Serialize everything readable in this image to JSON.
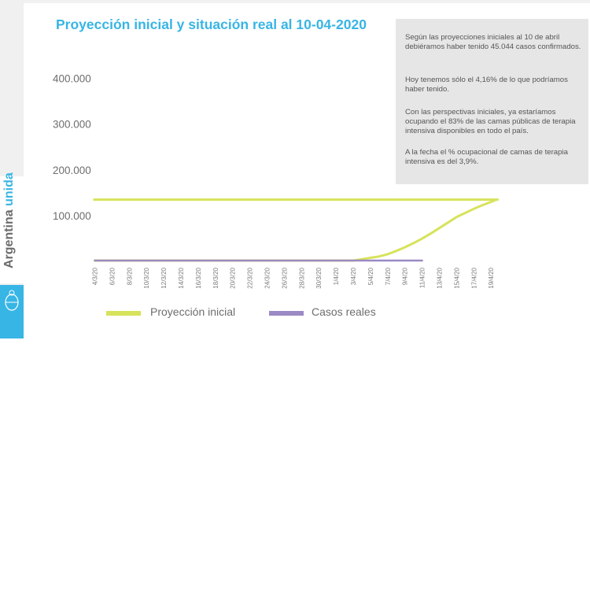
{
  "sidebar": {
    "brand_prefix": "Argentina ",
    "brand_accent": "unida",
    "crest_line1": "Argentina",
    "crest_line2": "Presidencia"
  },
  "header": {
    "title": "Proyección inicial y situación real al 10-04-2020"
  },
  "notes": [
    "Según las proyecciones iniciales al 10 de abril debiéramos haber tenido 45.044 casos confirmados.",
    "Hoy tenemos sólo el 4,16% de lo que podríamos haber tenido.",
    "Con las perspectivas iniciales, ya estaríamos ocupando el 83% de las camas públicas de terapia intensiva disponibles en todo el país.",
    "A la fecha el % ocupacional de camas de terapia intensiva es del 3,9%."
  ],
  "colors": {
    "title": "#37b5e5",
    "projection": "#d7e35a",
    "real": "#9b8ac4",
    "note_bg": "#e6e6e6"
  },
  "chart_data": {
    "type": "line",
    "title": "Proyección inicial y situación real al 10-04-2020",
    "xlabel": "",
    "ylabel": "",
    "ylim": [
      0,
      400000
    ],
    "yticks": [
      100000,
      200000,
      300000,
      400000
    ],
    "ytick_labels": [
      "100.000",
      "200.000",
      "300.000",
      "400.000"
    ],
    "categories": [
      "4/3/20",
      "6/3/20",
      "8/3/20",
      "10/3/20",
      "12/3/20",
      "14/3/20",
      "16/3/20",
      "18/3/20",
      "20/3/20",
      "22/3/20",
      "24/3/20",
      "26/3/20",
      "28/3/20",
      "30/3/20",
      "1/4/20",
      "3/4/20",
      "5/4/20",
      "7/4/20",
      "9/4/20",
      "11/4/20",
      "13/4/20",
      "15/4/20",
      "17/4/20",
      "19/4/20"
    ],
    "series": [
      {
        "name": "Proyección inicial",
        "color": "#d7e35a",
        "points": [
          [
            0,
            2000
          ],
          [
            14,
            2000
          ],
          [
            15,
            2000
          ],
          [
            15.5,
            5000
          ],
          [
            16,
            8000
          ],
          [
            16.5,
            11000
          ],
          [
            17,
            16000
          ],
          [
            17.5,
            23000
          ],
          [
            18,
            31000
          ],
          [
            18.5,
            40000
          ],
          [
            19,
            50000
          ],
          [
            19.5,
            61000
          ],
          [
            20,
            73000
          ],
          [
            20.5,
            85000
          ],
          [
            21,
            97000
          ],
          [
            21.5,
            106000
          ],
          [
            22,
            115000
          ],
          [
            22.5,
            123000
          ],
          [
            23,
            130000
          ],
          [
            23.3,
            135000
          ]
        ]
      },
      {
        "name": "Casos reales",
        "color": "#9b8ac4",
        "points": [
          [
            0,
            2000
          ],
          [
            19,
            2000
          ]
        ]
      }
    ],
    "reference_line": {
      "y": 135000,
      "from": 0,
      "to": 23.3,
      "color": "#d7e35a"
    },
    "legend": "bottom"
  }
}
